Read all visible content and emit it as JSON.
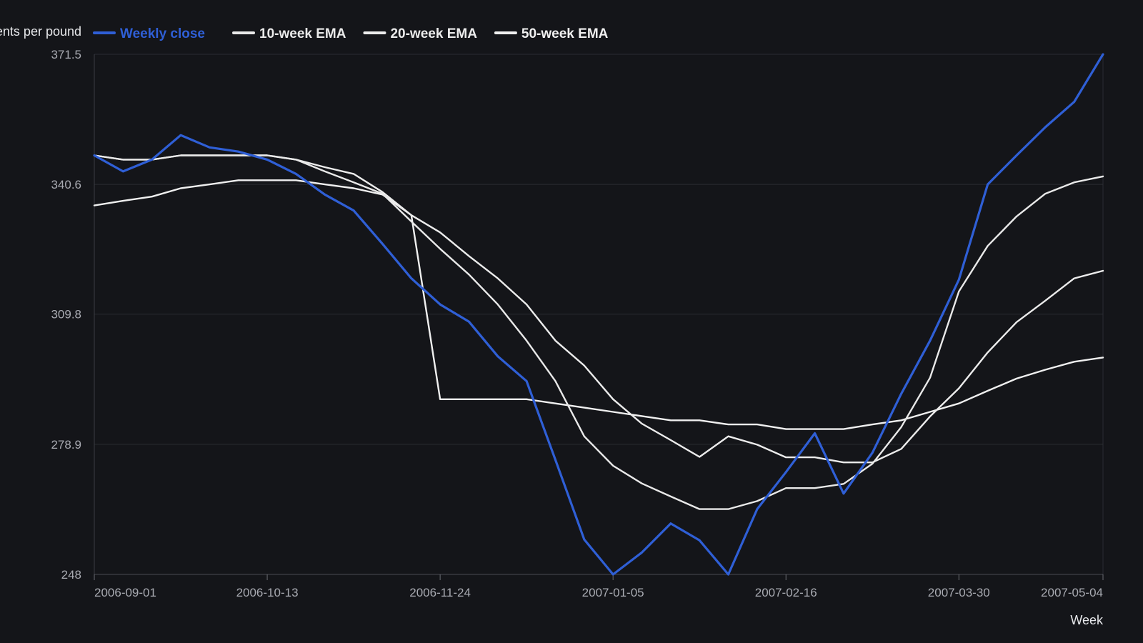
{
  "chart_data": {
    "type": "line",
    "ylabel": "Cents per pound",
    "xlabel": "Week",
    "ylim": [
      248,
      371.5
    ],
    "yticks": [
      "248",
      "278.9",
      "309.8",
      "340.6",
      "371.5"
    ],
    "xticks": [
      "2006-09-01",
      "2006-10-13",
      "2006-11-24",
      "2007-01-05",
      "2007-02-16",
      "2007-03-30",
      "2007-05-04"
    ],
    "x": [
      "2006-09-01",
      "2006-09-08",
      "2006-09-15",
      "2006-09-22",
      "2006-09-29",
      "2006-10-06",
      "2006-10-13",
      "2006-10-20",
      "2006-10-27",
      "2006-11-03",
      "2006-11-10",
      "2006-11-17",
      "2006-11-24",
      "2006-12-01",
      "2006-12-08",
      "2006-12-15",
      "2006-12-22",
      "2006-12-29",
      "2007-01-05",
      "2007-01-12",
      "2007-01-19",
      "2007-01-26",
      "2007-02-02",
      "2007-02-09",
      "2007-02-16",
      "2007-02-23",
      "2007-03-02",
      "2007-03-09",
      "2007-03-16",
      "2007-03-23",
      "2007-03-30",
      "2007-04-06",
      "2007-04-13",
      "2007-04-20",
      "2007-04-27",
      "2007-05-04"
    ],
    "grid": true,
    "legend_position": "top",
    "series": [
      {
        "name": "Weekly close",
        "color": "#2f5fd6",
        "values": [
          347.5,
          343.7,
          346.5,
          352.3,
          349.4,
          348.4,
          346.5,
          343.1,
          338.2,
          334.4,
          326.5,
          318.3,
          312.1,
          308.0,
          299.8,
          293.9,
          275.2,
          256.3,
          248,
          253.2,
          260.1,
          256.1,
          248,
          263.5,
          272.3,
          281.5,
          267.2,
          276.9,
          290.9,
          303.5,
          318.0,
          340.6,
          347.5,
          354.2,
          360.2,
          371.5
        ]
      },
      {
        "name": "10-week EMA",
        "color": "#e9e9e9",
        "values": [
          347.5,
          346.5,
          346.5,
          347.5,
          347.5,
          347.5,
          347.5,
          346.5,
          343.7,
          341.1,
          338.4,
          331.8,
          325.3,
          319.2,
          312.1,
          303.5,
          293.9,
          280.8,
          273.8,
          269.6,
          266.5,
          263.5,
          263.5,
          265.4,
          268.5,
          268.5,
          269.5,
          274.3,
          283.0,
          294.7,
          315.2,
          326.0,
          333.0,
          338.4,
          341.1,
          342.5
        ]
      },
      {
        "name": "20-week EMA",
        "color": "#ececec",
        "values": [
          347.5,
          346.5,
          346.5,
          347.5,
          347.5,
          347.5,
          347.5,
          346.5,
          344.7,
          343.1,
          338.8,
          333.3,
          329.2,
          323.6,
          318.3,
          312.1,
          303.5,
          297.6,
          289.6,
          283.8,
          279.9,
          275.9,
          280.8,
          278.8,
          275.8,
          275.8,
          274.6,
          274.6,
          277.8,
          285.5,
          292.2,
          300.7,
          307.9,
          313.0,
          318.3,
          320.1
        ]
      },
      {
        "name": "50-week EMA",
        "color": "#f0f0f0",
        "values": [
          335.6,
          336.7,
          337.7,
          339.7,
          340.6,
          341.6,
          341.6,
          341.6,
          340.6,
          339.7,
          338.2,
          333.3,
          289.6,
          289.6,
          289.6,
          289.6,
          288.6,
          287.6,
          286.6,
          285.6,
          284.6,
          284.6,
          283.6,
          283.6,
          282.5,
          282.5,
          282.5,
          283.6,
          284.6,
          286.6,
          288.6,
          291.6,
          294.5,
          296.6,
          298.5,
          299.5
        ]
      }
    ]
  }
}
